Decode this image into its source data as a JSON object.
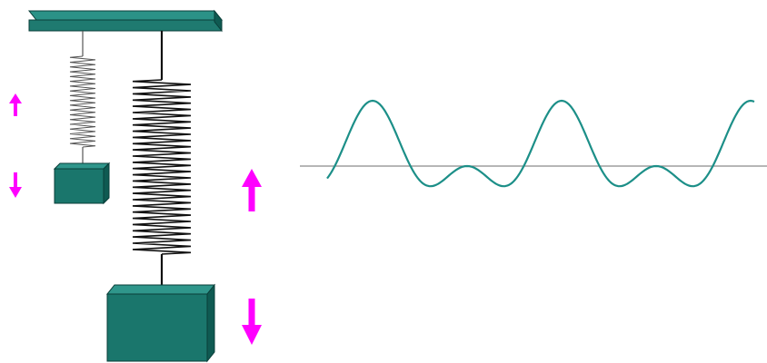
{
  "colors": {
    "beam_front": "#1f7a70",
    "beam_top": "#2b9287",
    "block_front": "#1a766c",
    "block_top": "#2f968b",
    "block_side": "#0f5a52",
    "outline": "#0a3d38",
    "spring_thin": "#555555",
    "spring_thick": "#111111",
    "arrow": "#ff00ff",
    "wave": "#1c8f88",
    "axis": "#8a8a8a",
    "background": "#ffffff"
  },
  "objects": {
    "support_beam": "support-beam",
    "small_spring": "small-spring",
    "large_spring": "large-spring",
    "small_mass": "small-mass-block",
    "large_mass": "large-mass-block",
    "arrows": [
      "small-up-arrow",
      "small-down-arrow",
      "large-up-arrow",
      "large-down-arrow"
    ],
    "waveform": "combined-oscillation-waveform"
  }
}
